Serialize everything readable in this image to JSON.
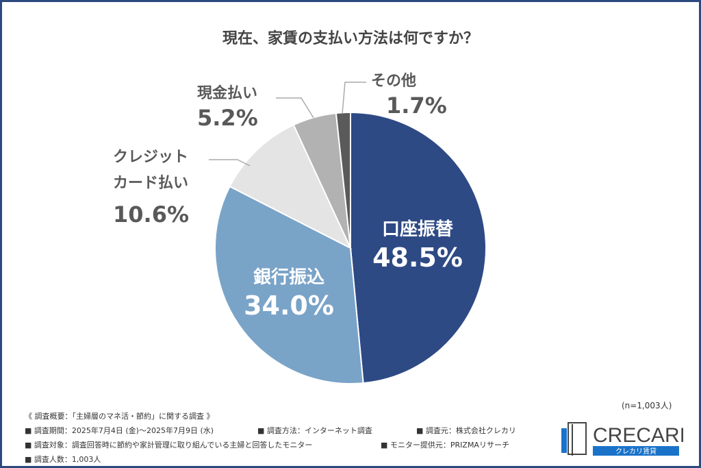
{
  "title": "現在、家賃の支払い方法は何ですか？",
  "chart_data": {
    "type": "pie",
    "title": "現在、家賃の支払い方法は何ですか？",
    "categories": [
      "口座振替",
      "銀行振込",
      "クレジットカード払い",
      "現金払い",
      "その他"
    ],
    "values": [
      48.5,
      34.0,
      10.6,
      5.2,
      1.7
    ],
    "labels": [
      "48.5%",
      "34.0%",
      "10.6%",
      "5.2%",
      "1.7%"
    ],
    "colors": [
      "#2e4a85",
      "#7aa3c8",
      "#e4e4e4",
      "#b2b2b2",
      "#5a5a5a"
    ],
    "start": "12 o'clock",
    "direction": "clockwise",
    "sample_size": "(n=1,003人)"
  },
  "slice_labels": {
    "s0": {
      "name": "口座振替",
      "pct": "48.5%"
    },
    "s1": {
      "name": "銀行振込",
      "pct": "34.0%"
    },
    "s2": {
      "name1": "クレジット",
      "name2": "カード払い",
      "pct": "10.6%"
    },
    "s3": {
      "name": "現金払い",
      "pct": "5.2%"
    },
    "s4": {
      "name": "その他",
      "pct": "1.7%"
    }
  },
  "survey": {
    "overview": "《 調査概要：「主婦層のマネ活・節約」に関する調査 》",
    "period": "■ 調査期間：2025年7月4日 (金)～2025年7月9日 (水)",
    "method": "■ 調査方法：インターネット調査",
    "source": "■ 調査元：株式会社クレカリ",
    "target": "■ 調査対象：調査回答時に節約や家計管理に取り組んでいる主婦と回答したモニター",
    "provider": "■ モニター提供元：PRIZMAリサーチ",
    "count": "■ 調査人数：1,003人"
  },
  "sample": "(n=1,003人)",
  "logo": {
    "name": "CRECARI",
    "sub": "クレカリ賃貸",
    "color": "#1a73c9"
  }
}
